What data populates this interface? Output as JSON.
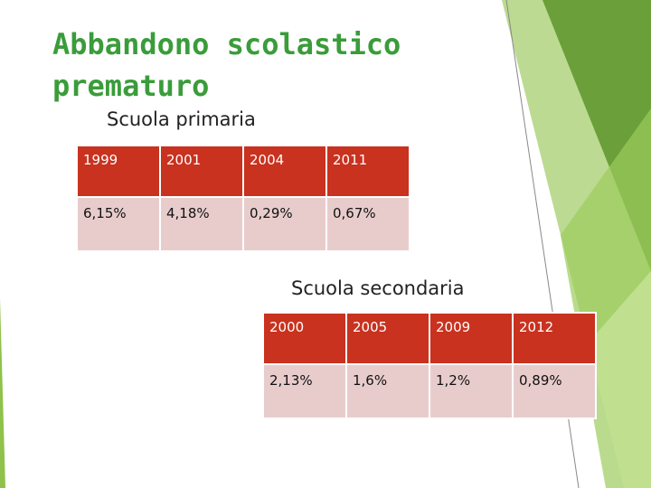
{
  "title": "Abbandono scolastico prematuro",
  "sections": [
    {
      "label": "Scuola primaria",
      "table": {
        "rows": [
          [
            "1999",
            "2001",
            "2004",
            "2011"
          ],
          [
            "6,15%",
            "4,18%",
            "0,29%",
            "0,67%"
          ]
        ]
      }
    },
    {
      "label": "Scuola secondaria",
      "table": {
        "rows": [
          [
            "2000",
            "2005",
            "2009",
            "2012"
          ],
          [
            "2,13%",
            "1,6%",
            "1,2%",
            "0,89%"
          ]
        ]
      }
    }
  ]
}
